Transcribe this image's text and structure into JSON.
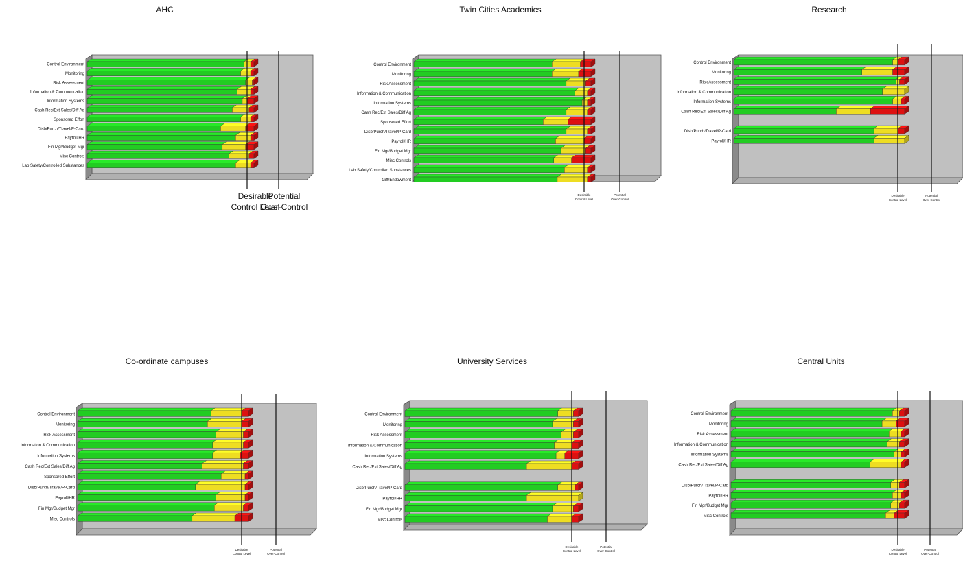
{
  "colors": {
    "green": "#22cc22",
    "yellow": "#eedd22",
    "red": "#dd1111",
    "panel_back": "#c0c0c0",
    "panel_side": "#8a8a8a"
  },
  "chart_data": [
    {
      "type": "bar",
      "stacked": true,
      "orientation": "horizontal",
      "title": "AHC",
      "reference_lines": [
        "Desirable Control Level",
        "Potential Over-Control"
      ],
      "categories": [
        "Control Environment",
        "Monitoring",
        "Risk Assessment",
        "Information & Communication",
        "Information Systems",
        "Cash Rec/Ext Sales/Diff Ag",
        "Sponsored Effort",
        "Disb/Purch/Travel/P-Card",
        "Payroll/HR",
        "Fin Mgr/Budget Mgr",
        "Misc Controls",
        "Lab Safety/Controlled Substances"
      ],
      "series": [
        {
          "values": [
            0.94,
            0.92,
            0.95,
            0.9,
            0.93,
            0.87,
            0.92,
            0.8,
            0.89,
            0.81,
            0.85,
            0.89
          ]
        },
        {
          "values": [
            0.04,
            0.06,
            0.04,
            0.08,
            0.03,
            0.1,
            0.06,
            0.15,
            0.09,
            0.14,
            0.12,
            0.09
          ]
        },
        {
          "values": [
            0.02,
            0.02,
            0.01,
            0.02,
            0.04,
            0.03,
            0.02,
            0.05,
            0.02,
            0.05,
            0.03,
            0.02
          ]
        }
      ]
    },
    {
      "type": "bar",
      "stacked": true,
      "orientation": "horizontal",
      "title": "Twin Cities Academics",
      "reference_lines": [
        "Desirable Control Level",
        "Potential Over-Control"
      ],
      "categories": [
        "Control Environment",
        "Monitoring",
        "Risk Assessment",
        "Information & Communication",
        "Information Systems",
        "Cash Rec/Ext Sales/Diff Ag",
        "Sponsored Effort",
        "Disb/Purch/Travel/P-Card",
        "Payroll/HR",
        "Fin Mgr/Budget Mgr",
        "Misc Controls",
        "Lab Safety/Controlled Substances",
        "Gift/Endowment"
      ],
      "series": [
        {
          "values": [
            0.78,
            0.78,
            0.86,
            0.91,
            0.95,
            0.86,
            0.73,
            0.86,
            0.8,
            0.83,
            0.79,
            0.85,
            0.81
          ]
        },
        {
          "values": [
            0.16,
            0.15,
            0.11,
            0.07,
            0.03,
            0.12,
            0.14,
            0.12,
            0.16,
            0.14,
            0.1,
            0.13,
            0.17
          ]
        },
        {
          "values": [
            0.06,
            0.07,
            0.03,
            0.02,
            0.02,
            0.02,
            0.13,
            0.02,
            0.04,
            0.03,
            0.11,
            0.02,
            0.02
          ]
        }
      ]
    },
    {
      "type": "bar",
      "stacked": true,
      "orientation": "horizontal",
      "title": "Research",
      "reference_lines": [
        "Desirable Control Level",
        "Potential Over-Control"
      ],
      "categories": [
        "Control Environment",
        "Monitoring",
        "Risk Assessment",
        "Information & Communication",
        "Information Systems",
        "Cash Rec/Ext Sales/Diff Ag",
        "",
        "Disb/Purch/Travel/P-Card",
        "Payroll/HR"
      ],
      "series": [
        {
          "values": [
            0.93,
            0.75,
            0.95,
            0.87,
            0.93,
            0.6,
            null,
            0.82,
            0.82
          ]
        },
        {
          "values": [
            0.03,
            0.18,
            0.02,
            0.13,
            0.05,
            0.2,
            null,
            0.14,
            0.18
          ]
        },
        {
          "values": [
            0.04,
            0.07,
            0.03,
            0.0,
            0.02,
            0.2,
            null,
            0.04,
            0.0
          ]
        }
      ]
    },
    {
      "type": "bar",
      "stacked": true,
      "orientation": "horizontal",
      "title": "Co-ordinate campuses",
      "reference_lines": [
        "Desirable Control Level",
        "Potential Over-Control"
      ],
      "categories": [
        "Control Environment",
        "Monitoring",
        "Risk Assessment",
        "Information & Communication",
        "Information Systems",
        "Cash Rec/Ext Sales/Diff Ag",
        "Sponsored Effort",
        "Disb/Purch/Travel/P-Card",
        "Payroll/HR",
        "Fin Mgr/Budget Mgr",
        "Misc Controls"
      ],
      "series": [
        {
          "values": [
            0.78,
            0.76,
            0.81,
            0.79,
            0.79,
            0.73,
            0.84,
            0.69,
            0.81,
            0.8,
            0.67
          ]
        },
        {
          "values": [
            0.18,
            0.2,
            0.16,
            0.18,
            0.16,
            0.24,
            0.14,
            0.29,
            0.17,
            0.17,
            0.25
          ]
        },
        {
          "values": [
            0.04,
            0.04,
            0.03,
            0.03,
            0.05,
            0.03,
            0.02,
            0.02,
            0.02,
            0.03,
            0.08
          ]
        }
      ]
    },
    {
      "type": "bar",
      "stacked": true,
      "orientation": "horizontal",
      "title": "University Services",
      "reference_lines": [
        "Desirable Control Level",
        "Potential Over-Control"
      ],
      "categories": [
        "Control Environment",
        "Monitoring",
        "Risk Assessment",
        "Information & Communication",
        "Information Systems",
        "Cash Rec/Ext Sales/Diff Ag",
        "",
        "Disb/Purch/Travel/P-Card",
        "Payroll/HR",
        "Fin Mgr/Budget Mgr",
        "Misc Controls"
      ],
      "series": [
        {
          "values": [
            0.88,
            0.85,
            0.9,
            0.86,
            0.87,
            0.7,
            null,
            0.88,
            0.7,
            0.85,
            0.82
          ]
        },
        {
          "values": [
            0.09,
            0.12,
            0.07,
            0.1,
            0.05,
            0.26,
            null,
            0.1,
            0.3,
            0.12,
            0.14
          ]
        },
        {
          "values": [
            0.03,
            0.03,
            0.03,
            0.04,
            0.08,
            0.04,
            null,
            0.02,
            0.0,
            0.03,
            0.04
          ]
        }
      ]
    },
    {
      "type": "bar",
      "stacked": true,
      "orientation": "horizontal",
      "title": "Central Units",
      "reference_lines": [
        "Desirable Control Level",
        "Potential Over-Control"
      ],
      "categories": [
        "Control Environment",
        "Monitoring",
        "Risk Assessment",
        "Information & Communication",
        "Information Systems",
        "Cash Rec/Ext Sales/Diff Ag",
        "",
        "Disb/Purch/Travel/P-Card",
        "Payroll/HR",
        "Fin Mgr/Budget Mgr",
        "Misc Controls"
      ],
      "series": [
        {
          "values": [
            0.93,
            0.87,
            0.91,
            0.9,
            0.94,
            0.8,
            null,
            0.92,
            0.93,
            0.92,
            0.89
          ]
        },
        {
          "values": [
            0.04,
            0.08,
            0.07,
            0.07,
            0.04,
            0.18,
            null,
            0.05,
            0.05,
            0.05,
            0.05
          ]
        },
        {
          "values": [
            0.03,
            0.05,
            0.02,
            0.03,
            0.02,
            0.02,
            null,
            0.03,
            0.02,
            0.03,
            0.06
          ]
        }
      ]
    }
  ]
}
